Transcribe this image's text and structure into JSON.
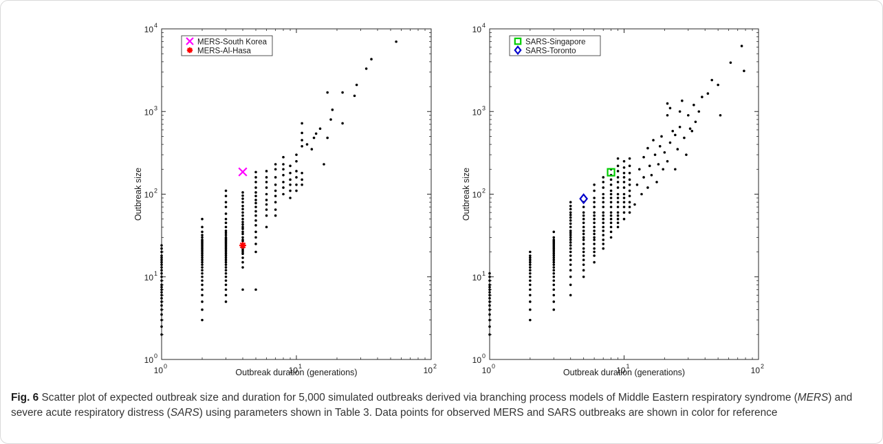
{
  "caption": {
    "label": "Fig. 6",
    "parts": [
      {
        "t": " Scatter plot of expected outbreak size and duration for 5,000 simulated outbreaks derived via branching process models of Middle Eastern respiratory syndrome (",
        "i": false
      },
      {
        "t": "MERS",
        "i": true
      },
      {
        "t": ") and severe acute respiratory distress (",
        "i": false
      },
      {
        "t": "SARS",
        "i": true
      },
      {
        "t": ") using parameters shown in Table 3. Data points for observed MERS and SARS outbreaks are shown in color for reference",
        "i": false
      }
    ]
  },
  "chart_data": [
    {
      "type": "scatter",
      "xscale": "log",
      "yscale": "log",
      "xlim": [
        1,
        100
      ],
      "ylim": [
        1,
        10000
      ],
      "xlabel": "Outbreak duration (generations)",
      "ylabel": "Outbreak size",
      "xticks": [
        {
          "base": "10",
          "exp": "0"
        },
        {
          "base": "10",
          "exp": "1"
        },
        {
          "base": "10",
          "exp": "2"
        }
      ],
      "yticks": [
        {
          "base": "10",
          "exp": "0"
        },
        {
          "base": "10",
          "exp": "1"
        },
        {
          "base": "10",
          "exp": "2"
        },
        {
          "base": "10",
          "exp": "3"
        },
        {
          "base": "10",
          "exp": "4"
        }
      ],
      "grid": false,
      "legend_position": "top-left",
      "columns": [
        {
          "x": 1,
          "y": [
            2,
            2.5,
            3,
            3.5,
            4,
            4.5,
            5,
            5.5,
            6,
            6.5,
            7,
            7.5,
            8,
            9,
            10,
            11,
            12,
            13,
            14,
            15,
            16,
            17,
            18,
            20,
            22,
            24
          ]
        },
        {
          "x": 2,
          "y": [
            3,
            4,
            5,
            6,
            7,
            8,
            9,
            10,
            11,
            12,
            13,
            14,
            15,
            16,
            17,
            18,
            19,
            20,
            21,
            22,
            23,
            24,
            25,
            26,
            27,
            28,
            30,
            32,
            35,
            40,
            50
          ]
        },
        {
          "x": 3,
          "y": [
            5,
            6,
            7,
            8,
            9,
            10,
            11,
            12,
            13,
            14,
            15,
            16,
            17,
            18,
            19,
            20,
            21,
            22,
            23,
            24,
            25,
            26,
            27,
            28,
            29,
            30,
            32,
            34,
            36,
            40,
            45,
            50,
            58,
            70,
            80,
            95,
            110
          ]
        },
        {
          "x": 4,
          "y": [
            7,
            13,
            15,
            17,
            19,
            20,
            21,
            22,
            23,
            25,
            27,
            28,
            30,
            33,
            35,
            38,
            40,
            43,
            46,
            50,
            55,
            60,
            66,
            72,
            80,
            88,
            96,
            105
          ]
        },
        {
          "x": 5,
          "y": [
            7,
            20,
            25,
            30,
            35,
            42,
            48,
            55,
            62,
            70,
            78,
            85,
            95,
            105,
            120,
            140,
            160,
            185
          ]
        },
        {
          "x": 6,
          "y": [
            40,
            55,
            65,
            75,
            85,
            100,
            120,
            140,
            160,
            190
          ]
        },
        {
          "x": 7,
          "y": [
            55,
            65,
            80,
            95,
            110,
            130,
            160,
            200,
            230
          ]
        },
        {
          "x": 8,
          "y": [
            100,
            120,
            140,
            170,
            200,
            230,
            280
          ]
        },
        {
          "x": 9,
          "y": [
            90,
            110,
            130,
            150,
            180,
            220
          ]
        },
        {
          "x": 10,
          "y": [
            110,
            130,
            160,
            190,
            250,
            300
          ]
        },
        {
          "x": 11,
          "y": [
            130,
            150,
            180,
            380,
            450,
            550,
            720
          ]
        }
      ],
      "points": [
        {
          "x": 12,
          "y": 400
        },
        {
          "x": 13,
          "y": 350
        },
        {
          "x": 13.5,
          "y": 480
        },
        {
          "x": 15,
          "y": 620
        },
        {
          "x": 14,
          "y": 540
        },
        {
          "x": 16,
          "y": 230
        },
        {
          "x": 17,
          "y": 480
        },
        {
          "x": 18,
          "y": 800
        },
        {
          "x": 17,
          "y": 1700
        },
        {
          "x": 18.5,
          "y": 1050
        },
        {
          "x": 22,
          "y": 1700
        },
        {
          "x": 22,
          "y": 720
        },
        {
          "x": 27,
          "y": 1550
        },
        {
          "x": 28,
          "y": 2100
        },
        {
          "x": 33,
          "y": 3300
        },
        {
          "x": 36,
          "y": 4300
        },
        {
          "x": 55,
          "y": 7000
        }
      ],
      "series": [
        {
          "name": "MERS-South Korea",
          "marker": "x",
          "color": "#ff00ff",
          "points": [
            {
              "x": 4,
              "y": 186
            }
          ]
        },
        {
          "name": "MERS-Al-Hasa",
          "marker": "asterisk",
          "color": "#ff0000",
          "points": [
            {
              "x": 4,
              "y": 24
            }
          ]
        }
      ]
    },
    {
      "type": "scatter",
      "xscale": "log",
      "yscale": "log",
      "xlim": [
        1,
        100
      ],
      "ylim": [
        1,
        10000
      ],
      "xlabel": "Outbreak duration (generations)",
      "ylabel": "Outbreak size",
      "xticks": [
        {
          "base": "10",
          "exp": "0"
        },
        {
          "base": "10",
          "exp": "1"
        },
        {
          "base": "10",
          "exp": "2"
        }
      ],
      "yticks": [
        {
          "base": "10",
          "exp": "0"
        },
        {
          "base": "10",
          "exp": "1"
        },
        {
          "base": "10",
          "exp": "2"
        },
        {
          "base": "10",
          "exp": "3"
        },
        {
          "base": "10",
          "exp": "4"
        }
      ],
      "grid": false,
      "legend_position": "top-left",
      "columns": [
        {
          "x": 1,
          "y": [
            2,
            2.5,
            3,
            3.5,
            4,
            4.5,
            5,
            5.5,
            6,
            6.5,
            7,
            7.5,
            8,
            9,
            10,
            11
          ]
        },
        {
          "x": 2,
          "y": [
            3,
            4,
            5,
            6,
            7,
            8,
            9,
            10,
            11,
            12,
            13,
            14,
            15,
            16,
            17,
            18,
            20
          ]
        },
        {
          "x": 3,
          "y": [
            4,
            5,
            6,
            7,
            8,
            9,
            10,
            11,
            12,
            13,
            14,
            15,
            16,
            17,
            18,
            19,
            20,
            21,
            22,
            23,
            24,
            25,
            26,
            27,
            28,
            30,
            35
          ]
        },
        {
          "x": 4,
          "y": [
            6,
            8,
            10,
            12,
            14,
            16,
            18,
            20,
            22,
            24,
            26,
            28,
            30,
            32,
            34,
            36,
            40,
            44,
            48,
            52,
            56,
            60,
            66,
            72,
            80
          ]
        },
        {
          "x": 5,
          "y": [
            10,
            12,
            14,
            16,
            18,
            20,
            22,
            25,
            28,
            30,
            33,
            36,
            40,
            45,
            50,
            55,
            60,
            70,
            80
          ]
        },
        {
          "x": 6,
          "y": [
            15,
            18,
            20,
            22,
            25,
            28,
            30,
            33,
            36,
            40,
            45,
            50,
            55,
            60,
            70,
            80,
            90,
            110,
            130
          ]
        },
        {
          "x": 7,
          "y": [
            22,
            25,
            28,
            32,
            36,
            40,
            45,
            50,
            55,
            60,
            70,
            80,
            90,
            100,
            120,
            140,
            160
          ]
        },
        {
          "x": 8,
          "y": [
            30,
            35,
            40,
            45,
            50,
            55,
            60,
            70,
            80,
            90,
            100,
            110,
            130,
            150,
            170,
            200
          ]
        },
        {
          "x": 9,
          "y": [
            40,
            45,
            50,
            55,
            60,
            70,
            80,
            90,
            100,
            120,
            140,
            160,
            190,
            220,
            270
          ]
        },
        {
          "x": 10,
          "y": [
            50,
            60,
            70,
            80,
            90,
            100,
            120,
            140,
            160,
            180,
            210,
            250
          ]
        },
        {
          "x": 11,
          "y": [
            60,
            70,
            80,
            95,
            110,
            130,
            150,
            180,
            220,
            270
          ]
        }
      ],
      "points": [
        {
          "x": 12,
          "y": 75
        },
        {
          "x": 12.5,
          "y": 130
        },
        {
          "x": 13,
          "y": 200
        },
        {
          "x": 13.5,
          "y": 100
        },
        {
          "x": 14,
          "y": 280
        },
        {
          "x": 14,
          "y": 160
        },
        {
          "x": 15,
          "y": 120
        },
        {
          "x": 15,
          "y": 360
        },
        {
          "x": 15.5,
          "y": 220
        },
        {
          "x": 16,
          "y": 170
        },
        {
          "x": 16.5,
          "y": 450
        },
        {
          "x": 17,
          "y": 300
        },
        {
          "x": 17.5,
          "y": 140
        },
        {
          "x": 18,
          "y": 230
        },
        {
          "x": 18.5,
          "y": 380
        },
        {
          "x": 19,
          "y": 500
        },
        {
          "x": 19.5,
          "y": 200
        },
        {
          "x": 20,
          "y": 320
        },
        {
          "x": 21,
          "y": 250
        },
        {
          "x": 21,
          "y": 900
        },
        {
          "x": 21,
          "y": 1250
        },
        {
          "x": 22,
          "y": 420
        },
        {
          "x": 22,
          "y": 1100
        },
        {
          "x": 23,
          "y": 580
        },
        {
          "x": 24,
          "y": 520
        },
        {
          "x": 24,
          "y": 200
        },
        {
          "x": 25,
          "y": 350
        },
        {
          "x": 26,
          "y": 650
        },
        {
          "x": 26,
          "y": 1000
        },
        {
          "x": 27,
          "y": 1350
        },
        {
          "x": 28,
          "y": 480
        },
        {
          "x": 29,
          "y": 300
        },
        {
          "x": 30,
          "y": 900
        },
        {
          "x": 31,
          "y": 620
        },
        {
          "x": 32,
          "y": 580
        },
        {
          "x": 33,
          "y": 1200
        },
        {
          "x": 34,
          "y": 750
        },
        {
          "x": 36,
          "y": 1000
        },
        {
          "x": 38,
          "y": 1500
        },
        {
          "x": 42,
          "y": 1650
        },
        {
          "x": 45,
          "y": 2400
        },
        {
          "x": 50,
          "y": 2100
        },
        {
          "x": 52,
          "y": 900
        },
        {
          "x": 62,
          "y": 3900
        },
        {
          "x": 75,
          "y": 6200
        },
        {
          "x": 78,
          "y": 3100
        }
      ],
      "series": [
        {
          "name": "SARS-Singapore",
          "marker": "square",
          "color": "#00cc00",
          "points": [
            {
              "x": 8,
              "y": 184
            }
          ]
        },
        {
          "name": "SARS-Toronto",
          "marker": "diamond",
          "color": "#0000cc",
          "points": [
            {
              "x": 5,
              "y": 88
            }
          ]
        }
      ]
    }
  ]
}
